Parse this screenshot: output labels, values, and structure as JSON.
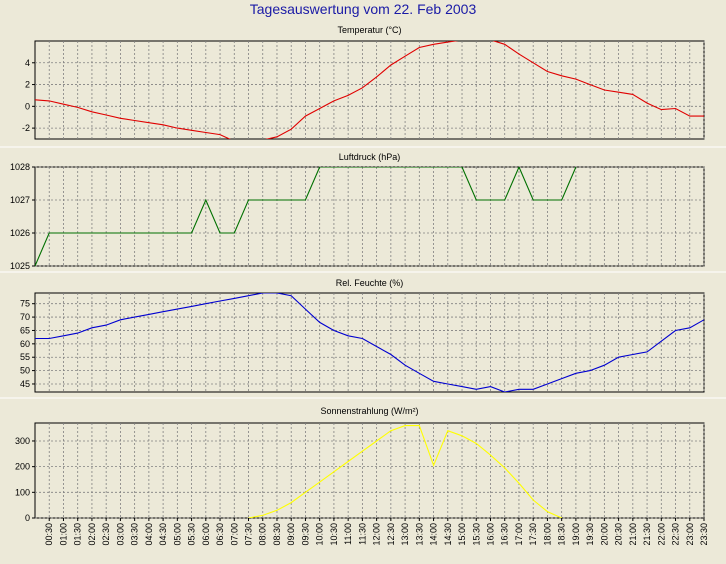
{
  "main_title": "Tagesauswertung vom 22. Feb 2003",
  "x_ticks": [
    "00:30",
    "01:00",
    "01:30",
    "02:00",
    "02:30",
    "03:00",
    "03:30",
    "04:00",
    "04:30",
    "05:00",
    "05:30",
    "06:00",
    "06:30",
    "07:00",
    "07:30",
    "08:00",
    "08:30",
    "09:00",
    "09:30",
    "10:00",
    "10:30",
    "11:00",
    "11:30",
    "12:00",
    "12:30",
    "13:00",
    "13:30",
    "14:00",
    "14:30",
    "15:00",
    "15:30",
    "16:00",
    "16:30",
    "17:00",
    "17:30",
    "18:00",
    "18:30",
    "19:00",
    "19:30",
    "20:00",
    "20:30",
    "21:00",
    "21:30",
    "22:00",
    "22:30",
    "23:00",
    "23:30"
  ],
  "chart_data": [
    {
      "type": "line",
      "title": "Temperatur (°C)",
      "color": "#e00000",
      "ylim": [
        -3,
        6
      ],
      "yticks": [
        -2,
        0,
        2,
        4
      ],
      "x": [
        "00:00",
        "00:30",
        "01:00",
        "01:30",
        "02:00",
        "02:30",
        "03:00",
        "03:30",
        "04:00",
        "04:30",
        "05:00",
        "05:30",
        "06:00",
        "06:30",
        "07:00",
        "07:30",
        "08:00",
        "08:30",
        "09:00",
        "09:30",
        "10:00",
        "10:30",
        "11:00",
        "11:30",
        "12:00",
        "12:30",
        "13:00",
        "13:30",
        "14:00",
        "14:30",
        "15:00",
        "15:30",
        "16:00",
        "16:30",
        "17:00",
        "17:30",
        "18:00",
        "18:30",
        "19:00",
        "19:30",
        "20:00",
        "20:30",
        "21:00",
        "21:30",
        "22:00",
        "22:30",
        "23:00",
        "23:30"
      ],
      "values": [
        0.6,
        0.5,
        0.2,
        -0.1,
        -0.5,
        -0.8,
        -1.1,
        -1.3,
        -1.5,
        -1.7,
        -2.0,
        -2.2,
        -2.4,
        -2.6,
        -3.2,
        -3.4,
        -3.1,
        -2.8,
        -2.1,
        -0.9,
        -0.2,
        0.5,
        1.0,
        1.7,
        2.7,
        3.8,
        4.6,
        5.4,
        5.7,
        5.9,
        6.1,
        6.2,
        6.1,
        5.7,
        4.8,
        4.0,
        3.2,
        2.8,
        2.5,
        2.0,
        1.5,
        1.3,
        1.1,
        0.3,
        -0.3,
        -0.2,
        -0.9,
        -0.9
      ]
    },
    {
      "type": "line",
      "title": "Luftdruck (hPa)",
      "color": "#007000",
      "ylim": [
        1025,
        1028
      ],
      "yticks": [
        1025,
        1026,
        1027,
        1028
      ],
      "x": [
        "00:00",
        "00:30",
        "00:30",
        "05:30",
        "06:00",
        "06:30",
        "07:00",
        "07:30",
        "09:30",
        "10:00",
        "15:00",
        "15:30",
        "16:30",
        "17:00",
        "17:30",
        "18:30",
        "19:00"
      ],
      "values": [
        1025,
        1026,
        1026,
        1026,
        1027,
        1026,
        1026,
        1027,
        1027,
        1028,
        1028,
        1027,
        1027,
        1028,
        1027,
        1027,
        1028
      ]
    },
    {
      "type": "line",
      "title": "Rel. Feuchte (%)",
      "color": "#0000d0",
      "ylim": [
        42,
        79
      ],
      "yticks": [
        45,
        50,
        55,
        60,
        65,
        70,
        75
      ],
      "x": [
        "00:00",
        "00:30",
        "01:00",
        "01:30",
        "02:00",
        "02:30",
        "03:00",
        "03:30",
        "04:00",
        "04:30",
        "05:00",
        "05:30",
        "06:00",
        "06:30",
        "07:00",
        "07:30",
        "08:00",
        "08:30",
        "09:00",
        "09:30",
        "10:00",
        "10:30",
        "11:00",
        "11:30",
        "12:00",
        "12:30",
        "13:00",
        "13:30",
        "14:00",
        "14:30",
        "15:00",
        "15:30",
        "16:00",
        "16:30",
        "17:00",
        "17:30",
        "18:00",
        "18:30",
        "19:00",
        "19:30",
        "20:00",
        "20:30",
        "21:00",
        "21:30",
        "22:00",
        "22:30",
        "23:00",
        "23:30"
      ],
      "values": [
        62,
        62,
        63,
        64,
        66,
        67,
        69,
        70,
        71,
        72,
        73,
        74,
        75,
        76,
        77,
        78,
        79,
        79,
        78,
        73,
        68,
        65,
        63,
        62,
        59,
        56,
        52,
        49,
        46,
        45,
        44,
        43,
        44,
        42,
        43,
        43,
        45,
        47,
        49,
        50,
        52,
        55,
        56,
        57,
        61,
        65,
        66,
        69
      ]
    },
    {
      "type": "line",
      "title": "Sonnenstrahlung (W/m²)",
      "color": "#ffff00",
      "ylim": [
        0,
        370
      ],
      "yticks": [
        0,
        100,
        200,
        300
      ],
      "x": [
        "07:30",
        "08:00",
        "08:30",
        "09:00",
        "09:30",
        "10:00",
        "10:30",
        "11:00",
        "11:30",
        "12:00",
        "12:30",
        "13:00",
        "13:30",
        "14:00",
        "14:30",
        "15:00",
        "15:30",
        "16:00",
        "16:30",
        "17:00",
        "17:30",
        "18:00",
        "18:30"
      ],
      "values": [
        0,
        10,
        30,
        60,
        100,
        140,
        180,
        220,
        260,
        300,
        340,
        360,
        360,
        205,
        340,
        320,
        290,
        245,
        195,
        135,
        70,
        25,
        0
      ]
    }
  ]
}
